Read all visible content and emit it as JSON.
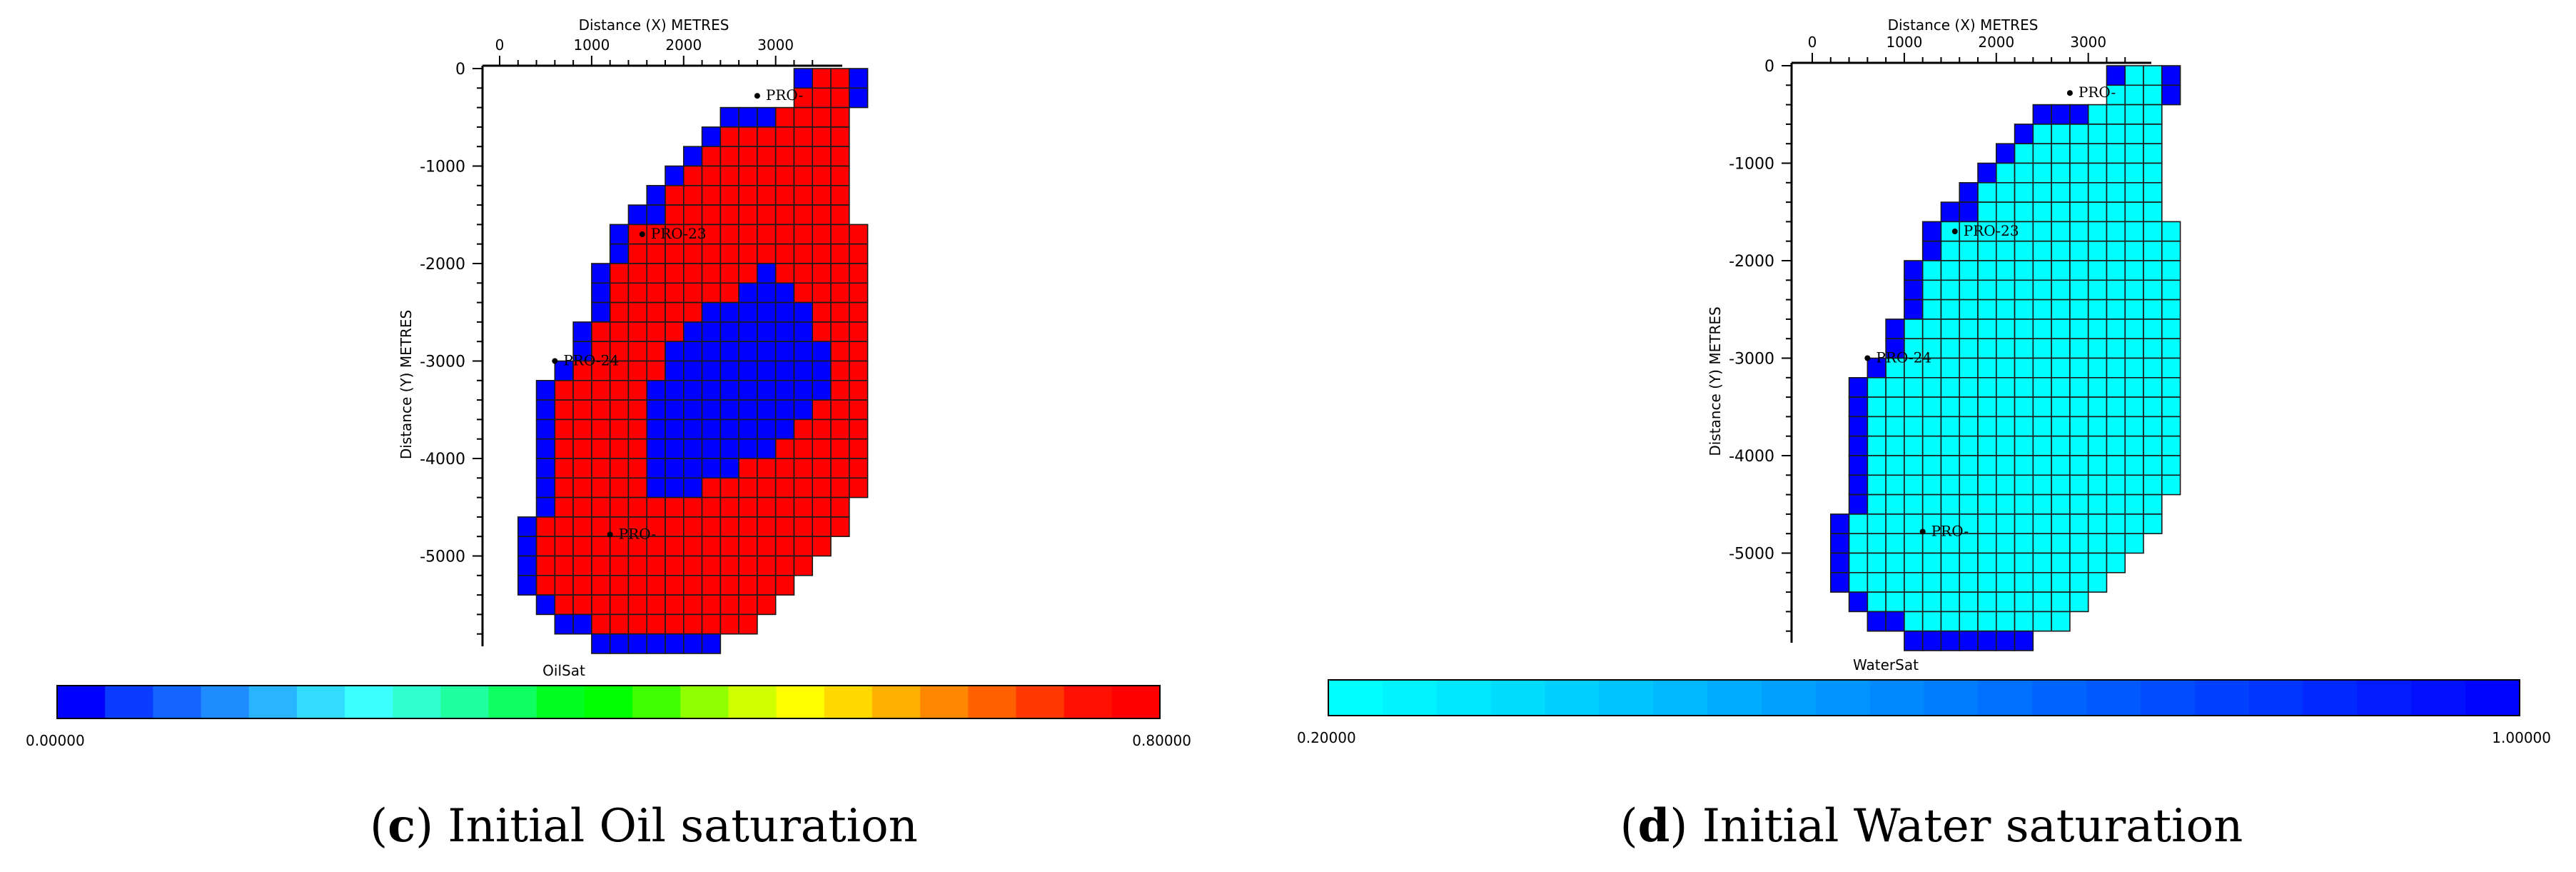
{
  "chart_data": [
    {
      "type": "heatmap",
      "panel": "c",
      "caption_letter": "c",
      "caption_text": " Initial Oil saturation",
      "caption_open": "(",
      "caption_close": ")",
      "xlabel": "Distance (X)  METRES",
      "ylabel": "Distance (Y)  METRES",
      "x_ticks": [
        0,
        1000,
        2000,
        3000
      ],
      "y_ticks": [
        0,
        -1000,
        -2000,
        -3000,
        -4000,
        -5000
      ],
      "colorbar_label": "OilSat",
      "colorbar_min_label": "0.00000",
      "colorbar_max_label": "0.80000",
      "colorbar_range": [
        0,
        0.8
      ],
      "colorbar_colors": [
        "#0000ff",
        "#0a3cff",
        "#1464ff",
        "#1e8cff",
        "#28b4ff",
        "#32dcff",
        "#3cffff",
        "#30ffd0",
        "#20ffa0",
        "#10ff60",
        "#00ff20",
        "#00ff00",
        "#40ff00",
        "#90ff00",
        "#d0ff00",
        "#ffff00",
        "#ffd800",
        "#ffb000",
        "#ff8800",
        "#ff6000",
        "#ff3800",
        "#ff1000",
        "#ff0000"
      ],
      "cell_colors": {
        "reservoir": "#ff0000",
        "water": "#0000ff"
      },
      "wells": [
        {
          "label": "PRO-",
          "x": 2800,
          "y": -280
        },
        {
          "label": "PRO-23",
          "x": 1550,
          "y": -1700
        },
        {
          "label": "PRO-24",
          "x": 600,
          "y": -3000
        },
        {
          "label": "PRO-",
          "x": 1200,
          "y": -4780
        }
      ]
    },
    {
      "type": "heatmap",
      "panel": "d",
      "caption_letter": "d",
      "caption_text": " Initial Water saturation",
      "caption_open": "(",
      "caption_close": ")",
      "xlabel": "Distance (X)  METRES",
      "ylabel": "Distance (Y)  METRES",
      "x_ticks": [
        0,
        1000,
        2000,
        3000
      ],
      "y_ticks": [
        0,
        -1000,
        -2000,
        -3000,
        -4000,
        -5000
      ],
      "colorbar_label": "WaterSat",
      "colorbar_min_label": "0.20000",
      "colorbar_max_label": "1.00000",
      "colorbar_range": [
        0.2,
        1.0
      ],
      "colorbar_colors": [
        "#00ffff",
        "#00f4ff",
        "#00e8ff",
        "#00dcff",
        "#00d0ff",
        "#00c4ff",
        "#00b8ff",
        "#00acff",
        "#00a0ff",
        "#0094ff",
        "#0088ff",
        "#007cff",
        "#0070ff",
        "#0064ff",
        "#0058ff",
        "#004cff",
        "#0040ff",
        "#0034ff",
        "#0028ff",
        "#001cff",
        "#0010ff",
        "#0004ff"
      ],
      "cell_colors": {
        "reservoir": "#00ffff",
        "water": "#0000ff"
      },
      "wells": [
        {
          "label": "PRO-",
          "x": 2800,
          "y": -280
        },
        {
          "label": "PRO-23",
          "x": 1550,
          "y": -1700
        },
        {
          "label": "PRO-24",
          "x": 600,
          "y": -3000
        },
        {
          "label": "PRO-",
          "x": 1200,
          "y": -4780
        }
      ]
    }
  ],
  "grid": {
    "cell_size": 200,
    "rows": [
      {
        "r": 0,
        "cells": [
          [
            16,
            16,
            "w"
          ],
          [
            17,
            18,
            "r"
          ],
          [
            19,
            19,
            "w"
          ]
        ]
      },
      {
        "r": 1,
        "cells": [
          [
            16,
            18,
            "r"
          ],
          [
            19,
            19,
            "w"
          ]
        ]
      },
      {
        "r": 2,
        "cells": [
          [
            12,
            14,
            "w"
          ],
          [
            15,
            18,
            "r"
          ]
        ]
      },
      {
        "r": 3,
        "cells": [
          [
            11,
            11,
            "w"
          ],
          [
            12,
            18,
            "r"
          ]
        ]
      },
      {
        "r": 4,
        "cells": [
          [
            10,
            10,
            "w"
          ],
          [
            11,
            18,
            "r"
          ]
        ]
      },
      {
        "r": 5,
        "cells": [
          [
            9,
            9,
            "w"
          ],
          [
            10,
            18,
            "r"
          ]
        ]
      },
      {
        "r": 6,
        "cells": [
          [
            8,
            8,
            "w"
          ],
          [
            9,
            18,
            "r"
          ]
        ]
      },
      {
        "r": 7,
        "cells": [
          [
            7,
            8,
            "w"
          ],
          [
            9,
            18,
            "r"
          ]
        ]
      },
      {
        "r": 8,
        "cells": [
          [
            6,
            6,
            "w"
          ],
          [
            7,
            19,
            "r"
          ]
        ]
      },
      {
        "r": 9,
        "cells": [
          [
            6,
            6,
            "w"
          ],
          [
            7,
            19,
            "r"
          ]
        ]
      },
      {
        "r": 10,
        "cells": [
          [
            5,
            5,
            "w"
          ],
          [
            6,
            19,
            "r"
          ]
        ]
      },
      {
        "r": 11,
        "cells": [
          [
            5,
            5,
            "w"
          ],
          [
            6,
            19,
            "r"
          ]
        ]
      },
      {
        "r": 12,
        "cells": [
          [
            5,
            5,
            "w"
          ],
          [
            6,
            19,
            "r"
          ]
        ]
      },
      {
        "r": 13,
        "cells": [
          [
            4,
            4,
            "w"
          ],
          [
            5,
            19,
            "r"
          ]
        ]
      },
      {
        "r": 14,
        "cells": [
          [
            4,
            4,
            "w"
          ],
          [
            5,
            19,
            "r"
          ]
        ]
      },
      {
        "r": 15,
        "cells": [
          [
            3,
            3,
            "w"
          ],
          [
            4,
            19,
            "r"
          ]
        ]
      },
      {
        "r": 16,
        "cells": [
          [
            2,
            2,
            "w"
          ],
          [
            3,
            19,
            "r"
          ]
        ]
      },
      {
        "r": 17,
        "cells": [
          [
            2,
            2,
            "w"
          ],
          [
            3,
            19,
            "r"
          ]
        ]
      },
      {
        "r": 18,
        "cells": [
          [
            2,
            2,
            "w"
          ],
          [
            3,
            19,
            "r"
          ]
        ]
      },
      {
        "r": 19,
        "cells": [
          [
            2,
            2,
            "w"
          ],
          [
            3,
            19,
            "r"
          ]
        ]
      },
      {
        "r": 20,
        "cells": [
          [
            2,
            2,
            "w"
          ],
          [
            3,
            19,
            "r"
          ]
        ]
      },
      {
        "r": 21,
        "cells": [
          [
            2,
            2,
            "w"
          ],
          [
            3,
            19,
            "r"
          ]
        ]
      },
      {
        "r": 22,
        "cells": [
          [
            2,
            2,
            "w"
          ],
          [
            3,
            18,
            "r"
          ]
        ]
      },
      {
        "r": 23,
        "cells": [
          [
            1,
            1,
            "w"
          ],
          [
            2,
            18,
            "r"
          ]
        ]
      },
      {
        "r": 24,
        "cells": [
          [
            1,
            1,
            "w"
          ],
          [
            2,
            17,
            "r"
          ]
        ]
      },
      {
        "r": 25,
        "cells": [
          [
            1,
            1,
            "w"
          ],
          [
            2,
            16,
            "r"
          ]
        ]
      },
      {
        "r": 26,
        "cells": [
          [
            1,
            1,
            "w"
          ],
          [
            2,
            15,
            "r"
          ]
        ]
      },
      {
        "r": 27,
        "cells": [
          [
            2,
            2,
            "w"
          ],
          [
            3,
            14,
            "r"
          ]
        ]
      },
      {
        "r": 28,
        "cells": [
          [
            3,
            4,
            "w"
          ],
          [
            5,
            13,
            "r"
          ]
        ]
      },
      {
        "r": 29,
        "cells": [
          [
            5,
            11,
            "w"
          ]
        ]
      }
    ],
    "oil_water_zone": [
      {
        "r": 10,
        "cells": [
          [
            14,
            14
          ]
        ]
      },
      {
        "r": 11,
        "cells": [
          [
            13,
            15
          ]
        ]
      },
      {
        "r": 12,
        "cells": [
          [
            11,
            16
          ]
        ]
      },
      {
        "r": 13,
        "cells": [
          [
            10,
            16
          ]
        ]
      },
      {
        "r": 14,
        "cells": [
          [
            9,
            17
          ]
        ]
      },
      {
        "r": 15,
        "cells": [
          [
            9,
            17
          ]
        ]
      },
      {
        "r": 16,
        "cells": [
          [
            8,
            17
          ]
        ]
      },
      {
        "r": 17,
        "cells": [
          [
            8,
            16
          ]
        ]
      },
      {
        "r": 18,
        "cells": [
          [
            8,
            15
          ]
        ]
      },
      {
        "r": 19,
        "cells": [
          [
            8,
            14
          ]
        ]
      },
      {
        "r": 20,
        "cells": [
          [
            8,
            12
          ]
        ]
      },
      {
        "r": 21,
        "cells": [
          [
            8,
            10
          ]
        ]
      }
    ]
  }
}
